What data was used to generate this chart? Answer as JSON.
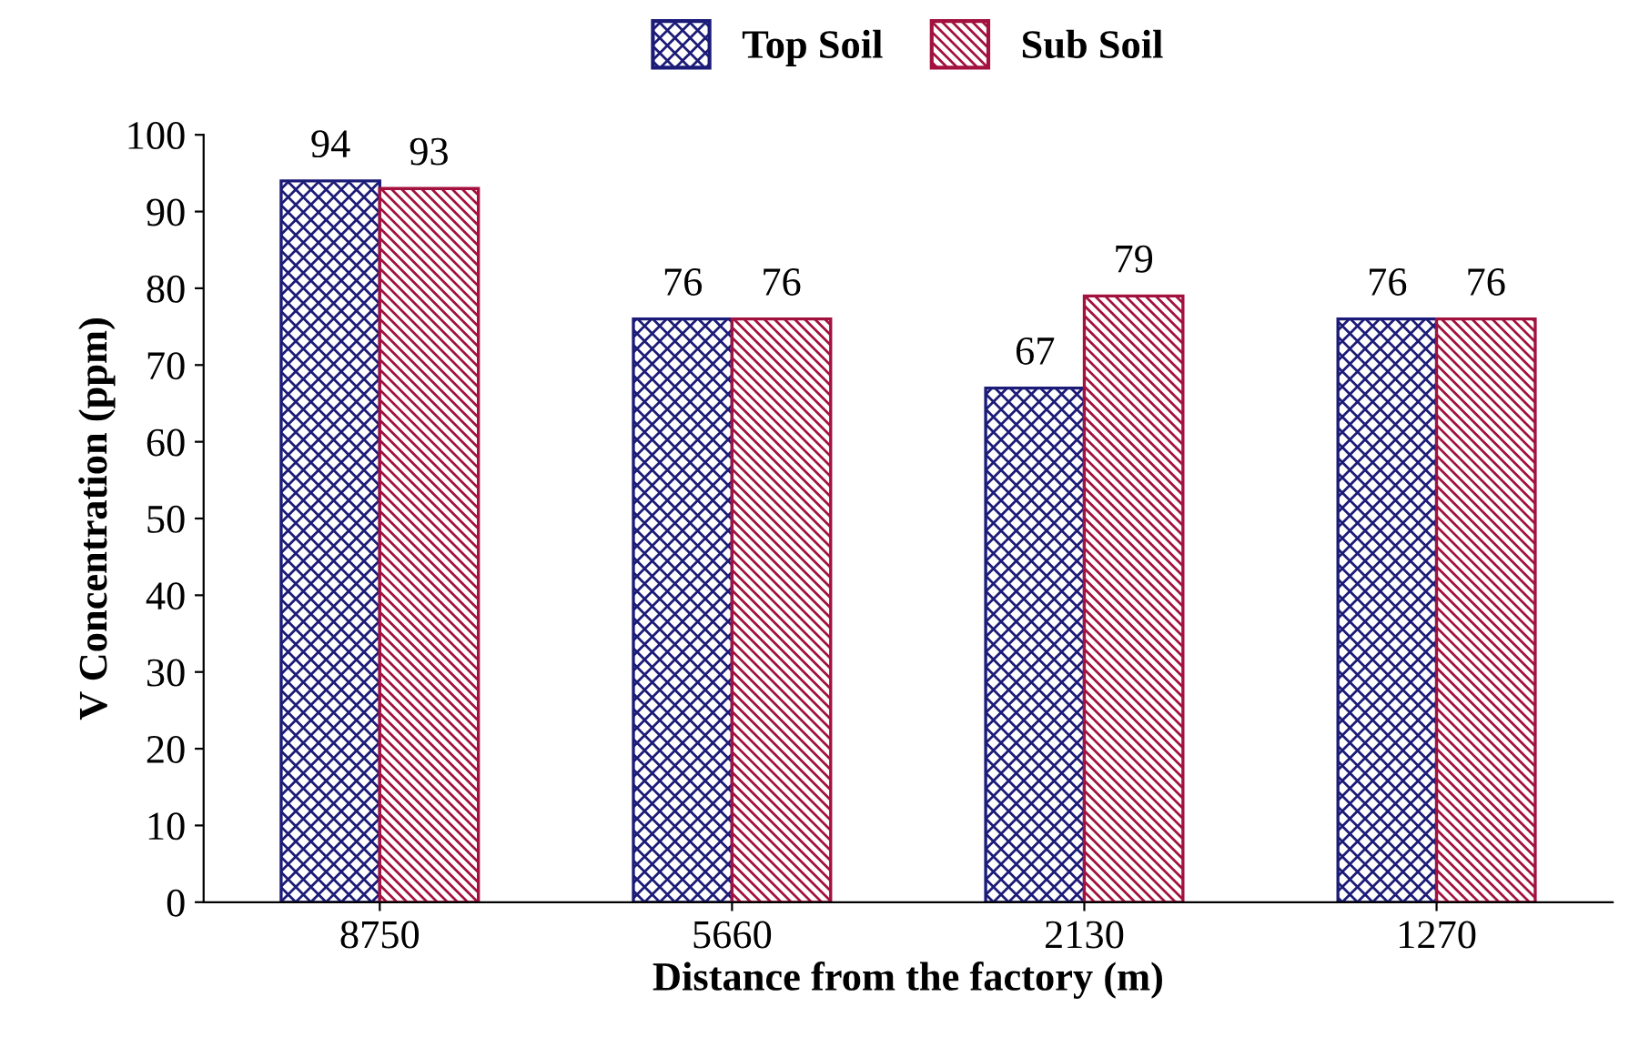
{
  "chart_data": {
    "type": "bar",
    "xlabel": "Distance from the factory (m)",
    "ylabel": "V Concentration (ppm)",
    "categories": [
      "8750",
      "5660",
      "2130",
      "1270"
    ],
    "series": [
      {
        "name": "Top Soil",
        "color": "#1c1c78",
        "values": [
          94,
          76,
          67,
          76
        ]
      },
      {
        "name": "Sub Soil",
        "color": "#a3123f",
        "values": [
          93,
          76,
          79,
          76
        ]
      }
    ],
    "ylim": [
      0,
      100
    ],
    "yticks": [
      0,
      10,
      20,
      30,
      40,
      50,
      60,
      70,
      80,
      90,
      100
    ],
    "grid": false,
    "legend": "top",
    "data_labels": true
  }
}
